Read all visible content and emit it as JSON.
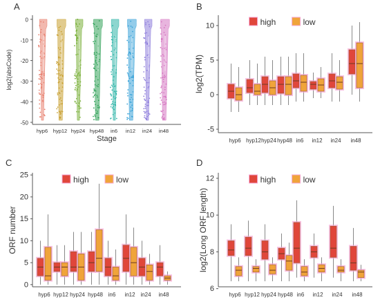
{
  "colors": {
    "high": "#e0463b",
    "low": "#f0a43a",
    "glow": "#f6a8d6",
    "axis": "#555555",
    "text": "#333333",
    "whisker": "#888888"
  },
  "chart_data": [
    {
      "panel": "A",
      "type": "violin+scatter",
      "xlabel": "Stage",
      "ylabel": "log2(absCode)",
      "categories": [
        "hyp6",
        "hyp12",
        "hyp24",
        "hyp48",
        "in6",
        "in12",
        "in24",
        "in48"
      ],
      "yticks": [
        0,
        -10,
        -20,
        -30,
        -40,
        -50
      ],
      "ylim": [
        -51,
        2
      ],
      "series_colors": [
        "#e77f6e",
        "#c8a032",
        "#7bb13c",
        "#33a35a",
        "#2fb5a8",
        "#3aa3d8",
        "#8f7fdc",
        "#d678c2"
      ]
    },
    {
      "panel": "B",
      "type": "box",
      "ylabel": "log2(TPM)",
      "legend": {
        "labels": [
          "high",
          "low"
        ],
        "position": "top"
      },
      "categories": [
        "hyp6",
        "hyp12",
        "hyp24",
        "hyp48",
        "in6",
        "in12",
        "in24",
        "in48"
      ],
      "yticks": [
        10,
        5,
        0,
        -5
      ],
      "ylim": [
        -5.5,
        11.5
      ],
      "series": [
        {
          "name": "high",
          "boxes": [
            [
              -2.5,
              -0.5,
              0.5,
              1.5,
              4.5
            ],
            [
              -1.5,
              0.3,
              1.0,
              2.2,
              5
            ],
            [
              -1.5,
              0.3,
              1.5,
              2.6,
              5.5
            ],
            [
              -1.5,
              0.2,
              1.5,
              2.6,
              5.5
            ],
            [
              -1,
              1.0,
              2.0,
              3.0,
              6
            ],
            [
              -0.5,
              0.8,
              1.5,
              1.9,
              3.2
            ],
            [
              -1,
              1.0,
              2.0,
              3.0,
              6
            ],
            [
              0,
              3.0,
              4.5,
              6.5,
              10
            ]
          ]
        },
        {
          "name": "low",
          "boxes": [
            [
              -2.5,
              -0.8,
              0.0,
              1.0,
              4
            ],
            [
              -1.5,
              0.0,
              0.5,
              1.5,
              4.5
            ],
            [
              -1.5,
              0.0,
              1.0,
              2.0,
              5
            ],
            [
              -1.5,
              0.0,
              1.5,
              2.6,
              5.5
            ],
            [
              -1,
              0.5,
              1.8,
              2.8,
              6
            ],
            [
              -0.5,
              0.5,
              1.4,
              2.3,
              4
            ],
            [
              -1,
              0.8,
              1.8,
              2.6,
              5
            ],
            [
              -1,
              1.0,
              4.5,
              7.5,
              10.5
            ]
          ]
        }
      ]
    },
    {
      "panel": "C",
      "type": "box",
      "ylabel": "ORF number",
      "legend": {
        "labels": [
          "high",
          "low"
        ],
        "position": "top"
      },
      "categories": [
        "hyp6",
        "hyp12",
        "hyp24",
        "hyp48",
        "in6",
        "in12",
        "in24",
        "in48"
      ],
      "yticks": [
        25,
        20,
        15,
        10,
        5,
        0
      ],
      "ylim": [
        -0.5,
        25.5
      ],
      "series": [
        {
          "name": "high",
          "boxes": [
            [
              0,
              2,
              4,
              6,
              10
            ],
            [
              0,
              3,
              4,
              5,
              9
            ],
            [
              0,
              3,
              4,
              7.5,
              12
            ],
            [
              0,
              3,
              5,
              7.5,
              12
            ],
            [
              0,
              2,
              4,
              6,
              10
            ],
            [
              0,
              3,
              6,
              9,
              16
            ],
            [
              0,
              2,
              4,
              6,
              10
            ],
            [
              0,
              2,
              4,
              5,
              9
            ]
          ]
        },
        {
          "name": "low",
          "boxes": [
            [
              0,
              1,
              2,
              8.5,
              16
            ],
            [
              0,
              2,
              4,
              5,
              9
            ],
            [
              0,
              1,
              4,
              7,
              12
            ],
            [
              0,
              3,
              6,
              12.5,
              23
            ],
            [
              0,
              1,
              2,
              4,
              8
            ],
            [
              0,
              2,
              5,
              8.5,
              13
            ],
            [
              0,
              1,
              3,
              4.5,
              7
            ],
            [
              0,
              1,
              1.5,
              2,
              3
            ]
          ]
        }
      ]
    },
    {
      "panel": "D",
      "type": "box",
      "ylabel": "log2(Long ORF length)",
      "legend": {
        "labels": [
          "high",
          "low"
        ],
        "position": "top"
      },
      "categories": [
        "hyp6",
        "hyp12",
        "hyp24",
        "hyp48",
        "in6",
        "in12",
        "in24",
        "in48"
      ],
      "yticks": [
        12,
        10,
        8,
        6
      ],
      "ylim": [
        6.1,
        12.3
      ],
      "series": [
        {
          "name": "high",
          "boxes": [
            [
              6.4,
              7.8,
              8.1,
              8.6,
              9.5
            ],
            [
              6.4,
              7.8,
              8.2,
              8.8,
              9.7
            ],
            [
              6.4,
              7.6,
              8.0,
              8.6,
              9.5
            ],
            [
              6.4,
              7.6,
              7.9,
              8.2,
              9.0
            ],
            [
              6.6,
              7.4,
              8.2,
              9.6,
              10.8
            ],
            [
              6.6,
              7.7,
              8.0,
              8.3,
              9.0
            ],
            [
              6.6,
              7.7,
              8.2,
              9.4,
              10.5
            ],
            [
              6.4,
              7.0,
              7.4,
              8.3,
              9.3
            ]
          ]
        },
        {
          "name": "low",
          "boxes": [
            [
              6.4,
              6.7,
              7.0,
              7.2,
              7.7
            ],
            [
              6.4,
              6.9,
              7.1,
              7.2,
              7.6
            ],
            [
              6.4,
              6.8,
              7.0,
              7.3,
              7.7
            ],
            [
              6.4,
              7.0,
              7.5,
              7.8,
              8.5
            ],
            [
              6.4,
              6.7,
              6.9,
              7.2,
              7.6
            ],
            [
              6.4,
              6.9,
              7.1,
              7.3,
              7.7
            ],
            [
              6.4,
              6.9,
              7.0,
              7.2,
              7.6
            ],
            [
              6.4,
              6.6,
              6.9,
              7.0,
              7.3
            ]
          ]
        }
      ]
    }
  ]
}
